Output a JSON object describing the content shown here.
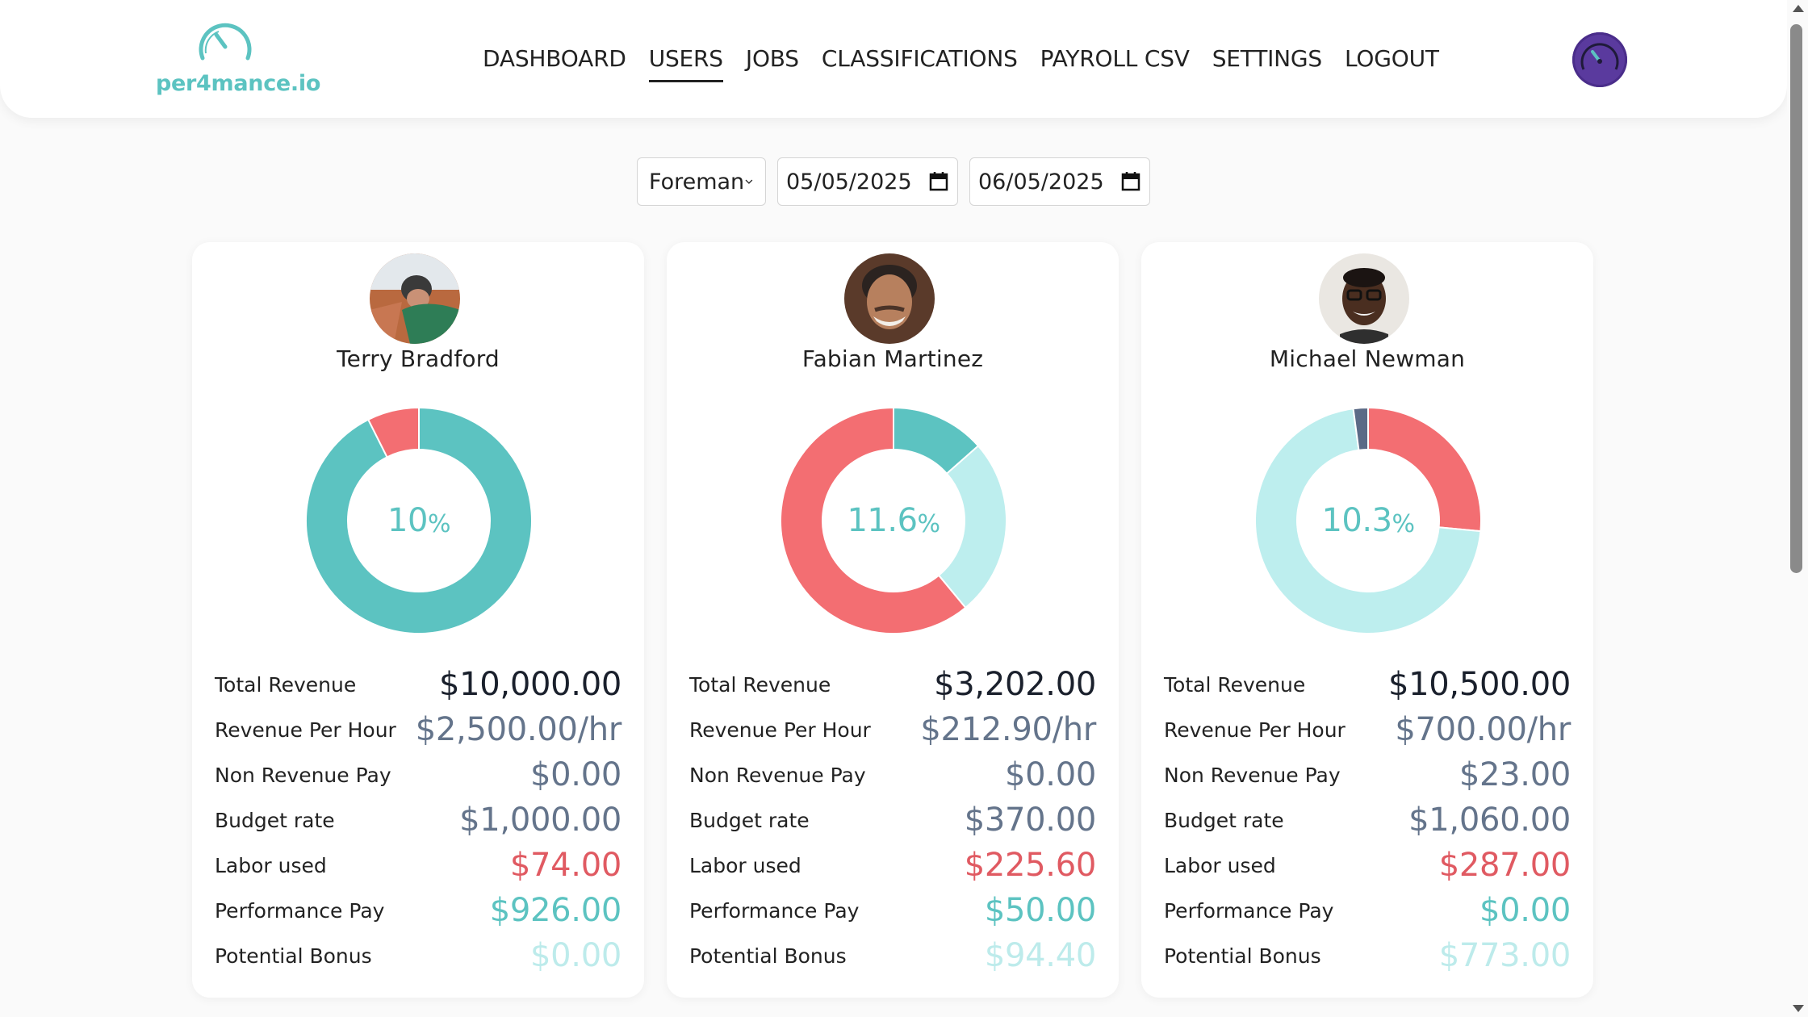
{
  "header": {
    "logo_text": "per4mance.io",
    "nav": [
      "DASHBOARD",
      "USERS",
      "JOBS",
      "CLASSIFICATIONS",
      "PAYROLL CSV",
      "SETTINGS",
      "LOGOUT"
    ],
    "active_nav": "USERS"
  },
  "filters": {
    "classification": "Foreman",
    "start_date": "05/05/2025",
    "end_date": "06/05/2025"
  },
  "stat_labels": {
    "total_revenue": "Total Revenue",
    "revenue_per_hour": "Revenue Per Hour",
    "non_revenue_pay": "Non Revenue Pay",
    "budget_rate": "Budget rate",
    "labor_used": "Labor used",
    "performance_pay": "Performance Pay",
    "potential_bonus": "Potential Bonus"
  },
  "colors": {
    "teal": "#5cc3c1",
    "red": "#f36e72",
    "light_teal": "#bdeeee",
    "slate": "#5b6a86",
    "purple": "#5a3a9e"
  },
  "users": [
    {
      "name": "Terry Bradford",
      "percent": "10",
      "percent_symbol": "%",
      "donut": [
        {
          "name": "Performance Pay",
          "value": 92.6,
          "color": "#5cc3c1"
        },
        {
          "name": "Labor used",
          "value": 7.4,
          "color": "#f36e72"
        }
      ],
      "stats": {
        "total_revenue": "$10,000.00",
        "revenue_per_hour": "$2,500.00/hr",
        "non_revenue_pay": "$0.00",
        "budget_rate": "$1,000.00",
        "labor_used": "$74.00",
        "performance_pay": "$926.00",
        "potential_bonus": "$0.00"
      }
    },
    {
      "name": "Fabian Martinez",
      "percent": "11.6",
      "percent_symbol": "%",
      "donut": [
        {
          "name": "Performance Pay",
          "value": 13.5,
          "color": "#5cc3c1"
        },
        {
          "name": "Potential Bonus",
          "value": 25.5,
          "color": "#bdeeee"
        },
        {
          "name": "Labor used",
          "value": 61.0,
          "color": "#f36e72"
        }
      ],
      "stats": {
        "total_revenue": "$3,202.00",
        "revenue_per_hour": "$212.90/hr",
        "non_revenue_pay": "$0.00",
        "budget_rate": "$370.00",
        "labor_used": "$225.60",
        "performance_pay": "$50.00",
        "potential_bonus": "$94.40"
      }
    },
    {
      "name": "Michael Newman",
      "percent": "10.3",
      "percent_symbol": "%",
      "donut": [
        {
          "name": "Labor used",
          "value": 26.5,
          "color": "#f36e72"
        },
        {
          "name": "Potential Bonus",
          "value": 71.4,
          "color": "#bdeeee"
        },
        {
          "name": "Non Revenue Pay",
          "value": 2.1,
          "color": "#5b6a86"
        }
      ],
      "stats": {
        "total_revenue": "$10,500.00",
        "revenue_per_hour": "$700.00/hr",
        "non_revenue_pay": "$23.00",
        "budget_rate": "$1,060.00",
        "labor_used": "$287.00",
        "performance_pay": "$0.00",
        "potential_bonus": "$773.00"
      }
    }
  ]
}
